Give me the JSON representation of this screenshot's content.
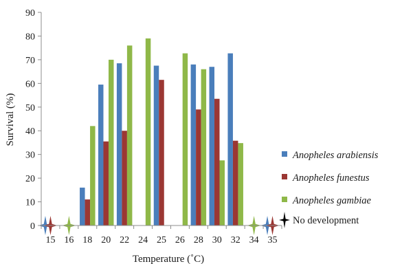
{
  "chart_data": {
    "type": "bar",
    "title": "",
    "xlabel": "Temperature (˚C)",
    "ylabel": "Survival (%)",
    "ylim": [
      0,
      90
    ],
    "ytick_step": 10,
    "categories": [
      "15",
      "16",
      "18",
      "20",
      "22",
      "24",
      "25",
      "26",
      "28",
      "30",
      "32",
      "34",
      "35"
    ],
    "series": [
      {
        "name": "Anopheles arabiensis",
        "color": "#4a7ebb",
        "values": [
          null,
          null,
          16,
          59.5,
          68.5,
          null,
          67.5,
          null,
          68,
          67,
          72.7,
          null,
          null
        ]
      },
      {
        "name": "Anopheles funestus",
        "color": "#9b3733",
        "values": [
          null,
          null,
          11,
          35.5,
          40,
          null,
          61.5,
          null,
          49,
          53.5,
          35.8,
          null,
          null
        ]
      },
      {
        "name": "Anopheles gambiae",
        "color": "#8fb848",
        "values": [
          null,
          null,
          42,
          70,
          76,
          79,
          null,
          72.7,
          66,
          27.5,
          34.8,
          null,
          null
        ]
      }
    ],
    "no_development": {
      "label": "No development",
      "marker_color": "#000000",
      "markers": [
        {
          "category": "15",
          "series": "Anopheles arabiensis"
        },
        {
          "category": "15",
          "series": "Anopheles funestus"
        },
        {
          "category": "16",
          "series": "Anopheles gambiae"
        },
        {
          "category": "34",
          "series": "Anopheles gambiae"
        },
        {
          "category": "35",
          "series": "Anopheles arabiensis"
        },
        {
          "category": "35",
          "series": "Anopheles funestus"
        }
      ]
    },
    "grid": false,
    "legend_position": "right"
  }
}
